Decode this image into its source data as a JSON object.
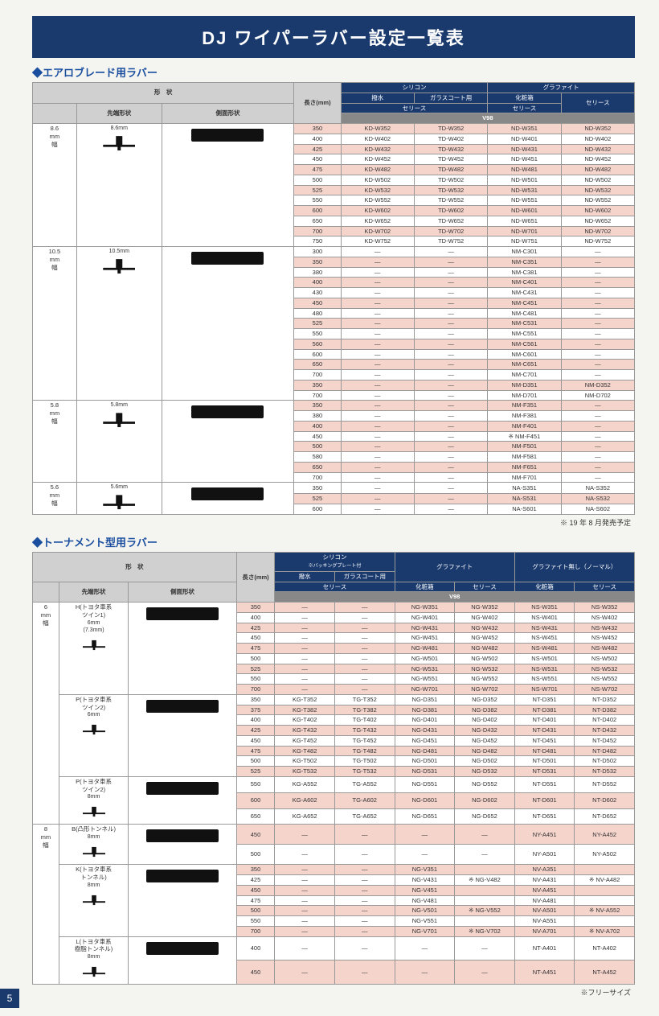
{
  "title": "DJ ワイパーラバー設定一覧表",
  "section1": {
    "heading": "エアロブレード用ラバー",
    "header1": {
      "shape": "形　状",
      "tip": "先端形状",
      "side": "側面形状",
      "len": "長さ(mm)"
    },
    "header2": {
      "silicon": "シリコン",
      "graphite": "グラファイト",
      "water": "撥水",
      "glass": "ガラスコート用",
      "box": "化粧箱",
      "series": "セリース",
      "v98": "V98"
    },
    "groups": [
      {
        "label": "8.6\nmm\n幅",
        "dim": "8.6mm",
        "rows": [
          {
            "len": "350",
            "c": [
              "KD-W352",
              "TD-W352",
              "ND-W351",
              "ND-W352"
            ],
            "alt": 0
          },
          {
            "len": "400",
            "c": [
              "KD-W402",
              "TD-W402",
              "ND-W401",
              "ND-W402"
            ],
            "alt": 1
          },
          {
            "len": "425",
            "c": [
              "KD-W432",
              "TD-W432",
              "ND-W431",
              "ND-W432"
            ],
            "alt": 0
          },
          {
            "len": "450",
            "c": [
              "KD-W452",
              "TD-W452",
              "ND-W451",
              "ND-W452"
            ],
            "alt": 1
          },
          {
            "len": "475",
            "c": [
              "KD-W482",
              "TD-W482",
              "ND-W481",
              "ND-W482"
            ],
            "alt": 0
          },
          {
            "len": "500",
            "c": [
              "KD-W502",
              "TD-W502",
              "ND-W501",
              "ND-W502"
            ],
            "alt": 1
          },
          {
            "len": "525",
            "c": [
              "KD-W532",
              "TD-W532",
              "ND-W531",
              "ND-W532"
            ],
            "alt": 0
          },
          {
            "len": "550",
            "c": [
              "KD-W552",
              "TD-W552",
              "ND-W551",
              "ND-W552"
            ],
            "alt": 1
          },
          {
            "len": "600",
            "c": [
              "KD-W602",
              "TD-W602",
              "ND-W601",
              "ND-W602"
            ],
            "alt": 0
          },
          {
            "len": "650",
            "c": [
              "KD-W652",
              "TD-W652",
              "ND-W651",
              "ND-W652"
            ],
            "alt": 1
          },
          {
            "len": "700",
            "c": [
              "KD-W702",
              "TD-W702",
              "ND-W701",
              "ND-W702"
            ],
            "alt": 0
          },
          {
            "len": "750",
            "c": [
              "KD-W752",
              "TD-W752",
              "ND-W751",
              "ND-W752"
            ],
            "alt": 1
          }
        ]
      },
      {
        "label": "10.5\nmm\n幅",
        "dim": "10.5mm",
        "rows": [
          {
            "len": "300",
            "c": [
              "—",
              "—",
              "NM-C301",
              "—"
            ],
            "alt": 1
          },
          {
            "len": "350",
            "c": [
              "—",
              "—",
              "NM-C351",
              "—"
            ],
            "alt": 0
          },
          {
            "len": "380",
            "c": [
              "—",
              "—",
              "NM-C381",
              "—"
            ],
            "alt": 1
          },
          {
            "len": "400",
            "c": [
              "—",
              "—",
              "NM-C401",
              "—"
            ],
            "alt": 0
          },
          {
            "len": "430",
            "c": [
              "—",
              "—",
              "NM-C431",
              "—"
            ],
            "alt": 1
          },
          {
            "len": "450",
            "c": [
              "—",
              "—",
              "NM-C451",
              "—"
            ],
            "alt": 0
          },
          {
            "len": "480",
            "c": [
              "—",
              "—",
              "NM-C481",
              "—"
            ],
            "alt": 1
          },
          {
            "len": "525",
            "c": [
              "—",
              "—",
              "NM-C531",
              "—"
            ],
            "alt": 0
          },
          {
            "len": "550",
            "c": [
              "—",
              "—",
              "NM-C551",
              "—"
            ],
            "alt": 1
          },
          {
            "len": "560",
            "c": [
              "—",
              "—",
              "NM-C561",
              "—"
            ],
            "alt": 0
          },
          {
            "len": "600",
            "c": [
              "—",
              "—",
              "NM-C601",
              "—"
            ],
            "alt": 1
          },
          {
            "len": "650",
            "c": [
              "—",
              "—",
              "NM-C651",
              "—"
            ],
            "alt": 0
          },
          {
            "len": "700",
            "c": [
              "—",
              "—",
              "NM-C701",
              "—"
            ],
            "alt": 1
          },
          {
            "len": "350",
            "c": [
              "—",
              "—",
              "NM-D351",
              "NM-D352"
            ],
            "alt": 0
          },
          {
            "len": "700",
            "c": [
              "—",
              "—",
              "NM-D701",
              "NM-D702"
            ],
            "alt": 1
          }
        ]
      },
      {
        "label": "5.8\nmm\n幅",
        "dim": "5.8mm",
        "rows": [
          {
            "len": "350",
            "c": [
              "—",
              "—",
              "NM-F351",
              "—"
            ],
            "alt": 0
          },
          {
            "len": "380",
            "c": [
              "—",
              "—",
              "NM-F381",
              "—"
            ],
            "alt": 1
          },
          {
            "len": "400",
            "c": [
              "—",
              "—",
              "NM-F401",
              "—"
            ],
            "alt": 0
          },
          {
            "len": "450",
            "c": [
              "—",
              "—",
              "※ NM-F451",
              "—"
            ],
            "alt": 1
          },
          {
            "len": "500",
            "c": [
              "—",
              "—",
              "NM-F501",
              "—"
            ],
            "alt": 0
          },
          {
            "len": "580",
            "c": [
              "—",
              "—",
              "NM-F581",
              "—"
            ],
            "alt": 1
          },
          {
            "len": "650",
            "c": [
              "—",
              "—",
              "NM-F651",
              "—"
            ],
            "alt": 0
          },
          {
            "len": "700",
            "c": [
              "—",
              "—",
              "NM-F701",
              "—"
            ],
            "alt": 1
          }
        ]
      },
      {
        "label": "5.6\nmm\n幅",
        "dim": "5.6mm",
        "rows": [
          {
            "len": "350",
            "c": [
              "—",
              "—",
              "NA-S351",
              "NA-S352"
            ],
            "alt": 1
          },
          {
            "len": "525",
            "c": [
              "—",
              "—",
              "NA-S531",
              "NA-S532"
            ],
            "alt": 0
          },
          {
            "len": "600",
            "c": [
              "—",
              "—",
              "NA-S601",
              "NA-S602"
            ],
            "alt": 1
          }
        ]
      }
    ],
    "note": "※ 19 年 8 月発売予定"
  },
  "section2": {
    "heading": "トーナメント型用ラバー",
    "header1": {
      "shape": "形　状",
      "tip": "先端形状",
      "side": "側面形状",
      "len": "長さ(mm)"
    },
    "header2": {
      "silicon": "シリコン",
      "sub": "※バッキングプレート付",
      "graphite": "グラファイト",
      "normal": "グラファイト無し（ノーマル）",
      "water": "撥水",
      "glass": "ガラスコート用",
      "box": "化粧箱",
      "series": "セリース",
      "v98": "V98"
    },
    "groups": [
      {
        "width": "6\nmm\n幅",
        "sub": "H(トヨタ車系\nツイン1)",
        "dim": "6mm\n(7.3mm)",
        "rows": [
          {
            "len": "350",
            "c": [
              "—",
              "—",
              "NG-W351",
              "NG-W352",
              "NS-W351",
              "NS-W352"
            ],
            "alt": 0
          },
          {
            "len": "400",
            "c": [
              "—",
              "—",
              "NG-W401",
              "NG-W402",
              "NS-W401",
              "NS-W402"
            ],
            "alt": 1
          },
          {
            "len": "425",
            "c": [
              "—",
              "—",
              "NG-W431",
              "NG-W432",
              "NS-W431",
              "NS-W432"
            ],
            "alt": 0
          },
          {
            "len": "450",
            "c": [
              "—",
              "—",
              "NG-W451",
              "NG-W452",
              "NS-W451",
              "NS-W452"
            ],
            "alt": 1
          },
          {
            "len": "475",
            "c": [
              "—",
              "—",
              "NG-W481",
              "NG-W482",
              "NS-W481",
              "NS-W482"
            ],
            "alt": 0
          },
          {
            "len": "500",
            "c": [
              "—",
              "—",
              "NG-W501",
              "NG-W502",
              "NS-W501",
              "NS-W502"
            ],
            "alt": 1
          },
          {
            "len": "525",
            "c": [
              "—",
              "—",
              "NG-W531",
              "NG-W532",
              "NS-W531",
              "NS-W532"
            ],
            "alt": 0
          },
          {
            "len": "550",
            "c": [
              "—",
              "—",
              "NG-W551",
              "NG-W552",
              "NS-W551",
              "NS-W552"
            ],
            "alt": 1
          },
          {
            "len": "700",
            "c": [
              "—",
              "—",
              "NG-W701",
              "NG-W702",
              "NS-W701",
              "NS-W702"
            ],
            "alt": 0
          }
        ]
      },
      {
        "width": "",
        "sub": "P(トヨタ車系\nツイン2)",
        "dim": "6mm",
        "rows": [
          {
            "len": "350",
            "c": [
              "KG-T352",
              "TG-T352",
              "NG-D351",
              "NG-D352",
              "NT-D351",
              "NT-D352"
            ],
            "alt": 1
          },
          {
            "len": "375",
            "c": [
              "KG-T382",
              "TG-T382",
              "NG-D381",
              "NG-D382",
              "NT-D381",
              "NT-D382"
            ],
            "alt": 0
          },
          {
            "len": "400",
            "c": [
              "KG-T402",
              "TG-T402",
              "NG-D401",
              "NG-D402",
              "NT-D401",
              "NT-D402"
            ],
            "alt": 1
          },
          {
            "len": "425",
            "c": [
              "KG-T432",
              "TG-T432",
              "NG-D431",
              "NG-D432",
              "NT-D431",
              "NT-D432"
            ],
            "alt": 0
          },
          {
            "len": "450",
            "c": [
              "KG-T452",
              "TG-T452",
              "NG-D451",
              "NG-D452",
              "NT-D451",
              "NT-D452"
            ],
            "alt": 1
          },
          {
            "len": "475",
            "c": [
              "KG-T482",
              "TG-T482",
              "NG-D481",
              "NG-D482",
              "NT-D481",
              "NT-D482"
            ],
            "alt": 0
          },
          {
            "len": "500",
            "c": [
              "KG-T502",
              "TG-T502",
              "NG-D501",
              "NG-D502",
              "NT-D501",
              "NT-D502"
            ],
            "alt": 1
          },
          {
            "len": "525",
            "c": [
              "KG-T532",
              "TG-T532",
              "NG-D531",
              "NG-D532",
              "NT-D531",
              "NT-D532"
            ],
            "alt": 0
          }
        ]
      },
      {
        "width": "",
        "sub": "P(トヨタ車系\nツイン2)",
        "dim": "8mm",
        "rows": [
          {
            "len": "550",
            "c": [
              "KG-A552",
              "TG-A552",
              "NG-D551",
              "NG-D552",
              "NT-D551",
              "NT-D552"
            ],
            "alt": 1
          },
          {
            "len": "600",
            "c": [
              "KG-A602",
              "TG-A602",
              "NG-D601",
              "NG-D602",
              "NT-D601",
              "NT-D602"
            ],
            "alt": 0
          },
          {
            "len": "650",
            "c": [
              "KG-A652",
              "TG-A652",
              "NG-D651",
              "NG-D652",
              "NT-D651",
              "NT-D652"
            ],
            "alt": 1
          }
        ]
      },
      {
        "width": "8\nmm\n幅",
        "sub": "B(凸形トンネル)",
        "dim": "8mm",
        "rows": [
          {
            "len": "450",
            "c": [
              "—",
              "—",
              "—",
              "—",
              "NY-A451",
              "NY-A452"
            ],
            "alt": 0
          },
          {
            "len": "500",
            "c": [
              "—",
              "—",
              "—",
              "—",
              "NY-A501",
              "NY-A502"
            ],
            "alt": 1
          }
        ]
      },
      {
        "width": "",
        "sub": "K(トヨタ車系\nトンネル)",
        "dim": "8mm",
        "rows": [
          {
            "len": "350",
            "c": [
              "—",
              "—",
              "NG-V351",
              "",
              "NV-A351",
              ""
            ],
            "alt": 0
          },
          {
            "len": "425",
            "c": [
              "—",
              "—",
              "NG-V431",
              "※ NG-V482",
              "NV-A431",
              "※ NV-A482"
            ],
            "alt": 1
          },
          {
            "len": "450",
            "c": [
              "—",
              "—",
              "NG-V451",
              "",
              "NV-A451",
              ""
            ],
            "alt": 0
          },
          {
            "len": "475",
            "c": [
              "—",
              "—",
              "NG-V481",
              "",
              "NV-A481",
              ""
            ],
            "alt": 1
          },
          {
            "len": "500",
            "c": [
              "—",
              "—",
              "NG-V501",
              "※ NG-V552",
              "NV-A501",
              "※ NV-A552"
            ],
            "alt": 0
          },
          {
            "len": "550",
            "c": [
              "—",
              "—",
              "NG-V551",
              "",
              "NV-A551",
              ""
            ],
            "alt": 1
          },
          {
            "len": "700",
            "c": [
              "—",
              "—",
              "NG-V701",
              "※ NG-V702",
              "NV-A701",
              "※ NV-A702"
            ],
            "alt": 0
          }
        ]
      },
      {
        "width": "",
        "sub": "L(トヨタ車系\n樹脂トンネル)",
        "dim": "8mm",
        "rows": [
          {
            "len": "400",
            "c": [
              "—",
              "—",
              "—",
              "—",
              "NT-A401",
              "NT-A402"
            ],
            "alt": 1
          },
          {
            "len": "450",
            "c": [
              "—",
              "—",
              "—",
              "—",
              "NT-A451",
              "NT-A452"
            ],
            "alt": 0
          }
        ]
      }
    ],
    "note": "※フリーサイズ"
  },
  "page_num": "5"
}
